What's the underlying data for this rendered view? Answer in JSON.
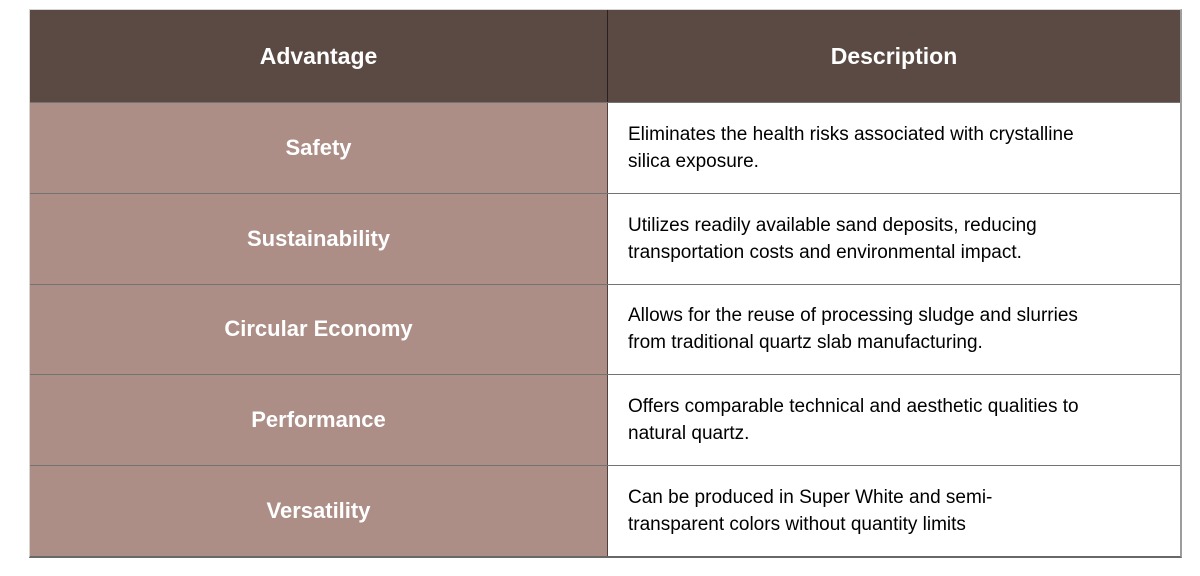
{
  "theme": {
    "page_bg": "#ffffff",
    "header_bg": "#5a4a43",
    "header_text": "#ffffff",
    "advantage_bg": "#ac8e87",
    "advantage_text": "#ffffff",
    "description_bg": "#ffffff",
    "description_text": "#000000",
    "grid_line": "rgba(0,0,0,0.55)"
  },
  "table": {
    "columns": [
      {
        "label": "Advantage"
      },
      {
        "label": "Description"
      }
    ],
    "rows": [
      {
        "advantage": "Safety",
        "description": "Eliminates the health risks associated with crystalline\nsilica exposure."
      },
      {
        "advantage": "Sustainability",
        "description": "Utilizes readily available sand deposits, reducing\ntransportation costs and environmental impact."
      },
      {
        "advantage": "Circular Economy",
        "description": "Allows for the reuse of processing sludge and slurries\nfrom traditional quartz slab manufacturing."
      },
      {
        "advantage": "Performance",
        "description": "Offers comparable technical and aesthetic qualities to\nnatural quartz."
      },
      {
        "advantage": "Versatility",
        "description": "Can be produced in Super White and semi-\ntransparent colors without quantity limits"
      }
    ]
  }
}
